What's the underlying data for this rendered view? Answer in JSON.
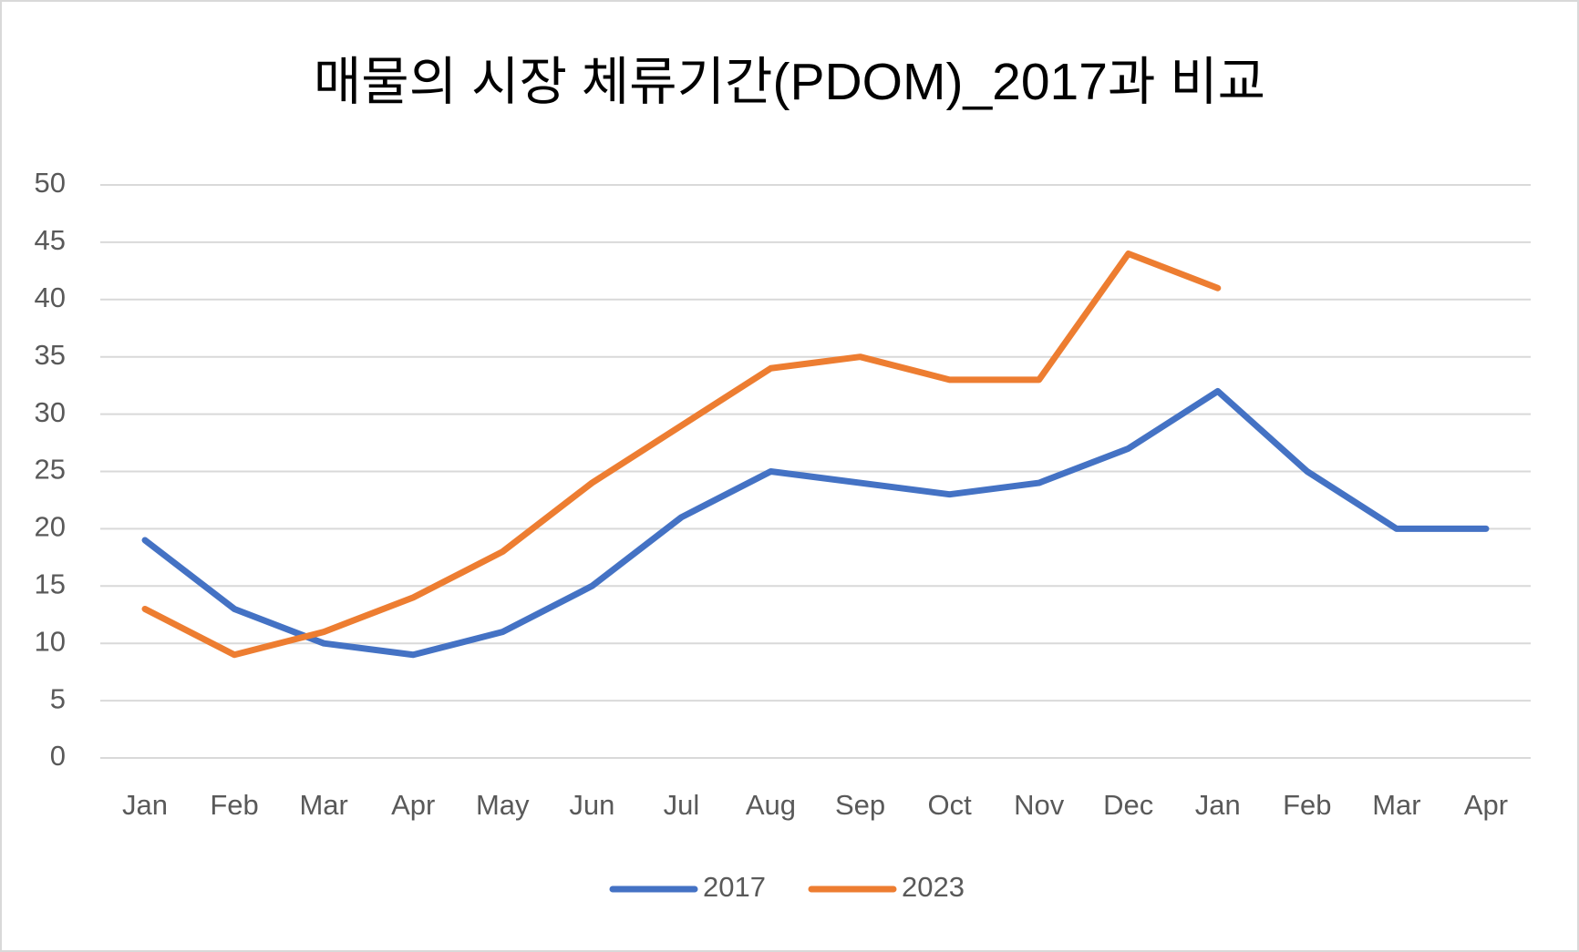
{
  "chart_data": {
    "type": "line",
    "title": "매물의 시장 체류기간(PDOM)_2017과 비교",
    "categories": [
      "Jan",
      "Feb",
      "Mar",
      "Apr",
      "May",
      "Jun",
      "Jul",
      "Aug",
      "Sep",
      "Oct",
      "Nov",
      "Dec",
      "Jan",
      "Feb",
      "Mar",
      "Apr"
    ],
    "series": [
      {
        "name": "2017",
        "color": "#4472c4",
        "values": [
          19,
          13,
          10,
          9,
          11,
          15,
          21,
          25,
          24,
          23,
          24,
          27,
          32,
          25,
          20,
          20
        ]
      },
      {
        "name": "2023",
        "color": "#ed7d31",
        "values": [
          13,
          9,
          11,
          14,
          18,
          24,
          29,
          34,
          35,
          33,
          33,
          44,
          41,
          null,
          null,
          null
        ]
      }
    ],
    "ylim": [
      0,
      50
    ],
    "yticks": [
      0,
      5,
      10,
      15,
      20,
      25,
      30,
      35,
      40,
      45,
      50
    ],
    "grid": true,
    "legend": "bottom"
  }
}
